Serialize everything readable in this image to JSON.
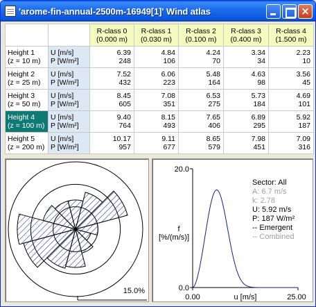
{
  "window": {
    "title": "'arome-fin-annual-2500m-16949[1]' Wind atlas",
    "buttons": {
      "minimize": "minimize",
      "maximize": "maximize",
      "close": "×"
    }
  },
  "grid": {
    "rclass_headers": [
      {
        "name": "R-class 0",
        "roughness": "(0.000 m)"
      },
      {
        "name": "R-class 1",
        "roughness": "(0.030 m)"
      },
      {
        "name": "R-class 2",
        "roughness": "(0.100 m)"
      },
      {
        "name": "R-class 3",
        "roughness": "(0.400 m)"
      },
      {
        "name": "R-class 4",
        "roughness": "(1.500 m)"
      }
    ],
    "rows": [
      {
        "height": "Height 1",
        "z": "(z = 10 m)",
        "u_label": "U [m/s]",
        "p_label": "P [W/m²]",
        "u": [
          "6.39",
          "4.84",
          "4.24",
          "3.34",
          "2.23"
        ],
        "p": [
          "248",
          "106",
          "70",
          "34",
          "10"
        ]
      },
      {
        "height": "Height 2",
        "z": "(z = 25 m)",
        "u_label": "U [m/s]",
        "p_label": "P [W/m²]",
        "u": [
          "7.52",
          "6.06",
          "5.48",
          "4.63",
          "3.56"
        ],
        "p": [
          "432",
          "223",
          "164",
          "98",
          "45"
        ]
      },
      {
        "height": "Height 3",
        "z": "(z = 50 m)",
        "u_label": "U [m/s]",
        "p_label": "P [W/m²]",
        "u": [
          "8.45",
          "7.08",
          "6.53",
          "5.73",
          "4.69"
        ],
        "p": [
          "605",
          "351",
          "275",
          "184",
          "101"
        ]
      },
      {
        "height": "Height 4",
        "z": "(z = 100 m)",
        "u_label": "U [m/s]",
        "p_label": "P [W/m²]",
        "u": [
          "9.40",
          "8.15",
          "7.65",
          "6.89",
          "5.92"
        ],
        "p": [
          "764",
          "493",
          "406",
          "295",
          "187"
        ]
      },
      {
        "height": "Height 5",
        "z": "(z = 200 m)",
        "u_label": "U [m/s]",
        "p_label": "P [W/m²]",
        "u": [
          "10.17",
          "9.11",
          "8.65",
          "7.98",
          "7.09"
        ],
        "p": [
          "957",
          "677",
          "579",
          "451",
          "316"
        ]
      }
    ],
    "selected_row": 3,
    "selected_col": 4
  },
  "rose": {
    "scale_label": "15.0%",
    "scale_max_percent": 15.0,
    "sector_frequencies_percent": [
      6.5,
      8.5,
      12.0,
      5.0,
      3.5,
      5.5,
      8.5,
      9.0,
      12.0,
      13.0,
      7.5,
      6.5
    ]
  },
  "distribution": {
    "y_max_label": "20.0",
    "y_min_label": "0.0",
    "x_min_label": "0.00",
    "x_max_label": "25.00",
    "y_axis_label_1": "f",
    "y_axis_label_2": "[%/(m/s)]",
    "x_axis_label": "u [m/s]",
    "legend": {
      "sector": "Sector: All",
      "a": "A: 6.7 m/s",
      "k": "k: 2.78",
      "u": "U: 5.92 m/s",
      "p": "P: 187 W/m²",
      "emergent": "-- Emergent",
      "combined": "-- Combined"
    },
    "weibull_A": 6.7,
    "weibull_k": 2.78,
    "x_range": [
      0,
      25
    ],
    "y_range": [
      0,
      20
    ],
    "colors": {
      "curve": "#1a1a8c",
      "muted_text": "#a0a0a0"
    }
  }
}
